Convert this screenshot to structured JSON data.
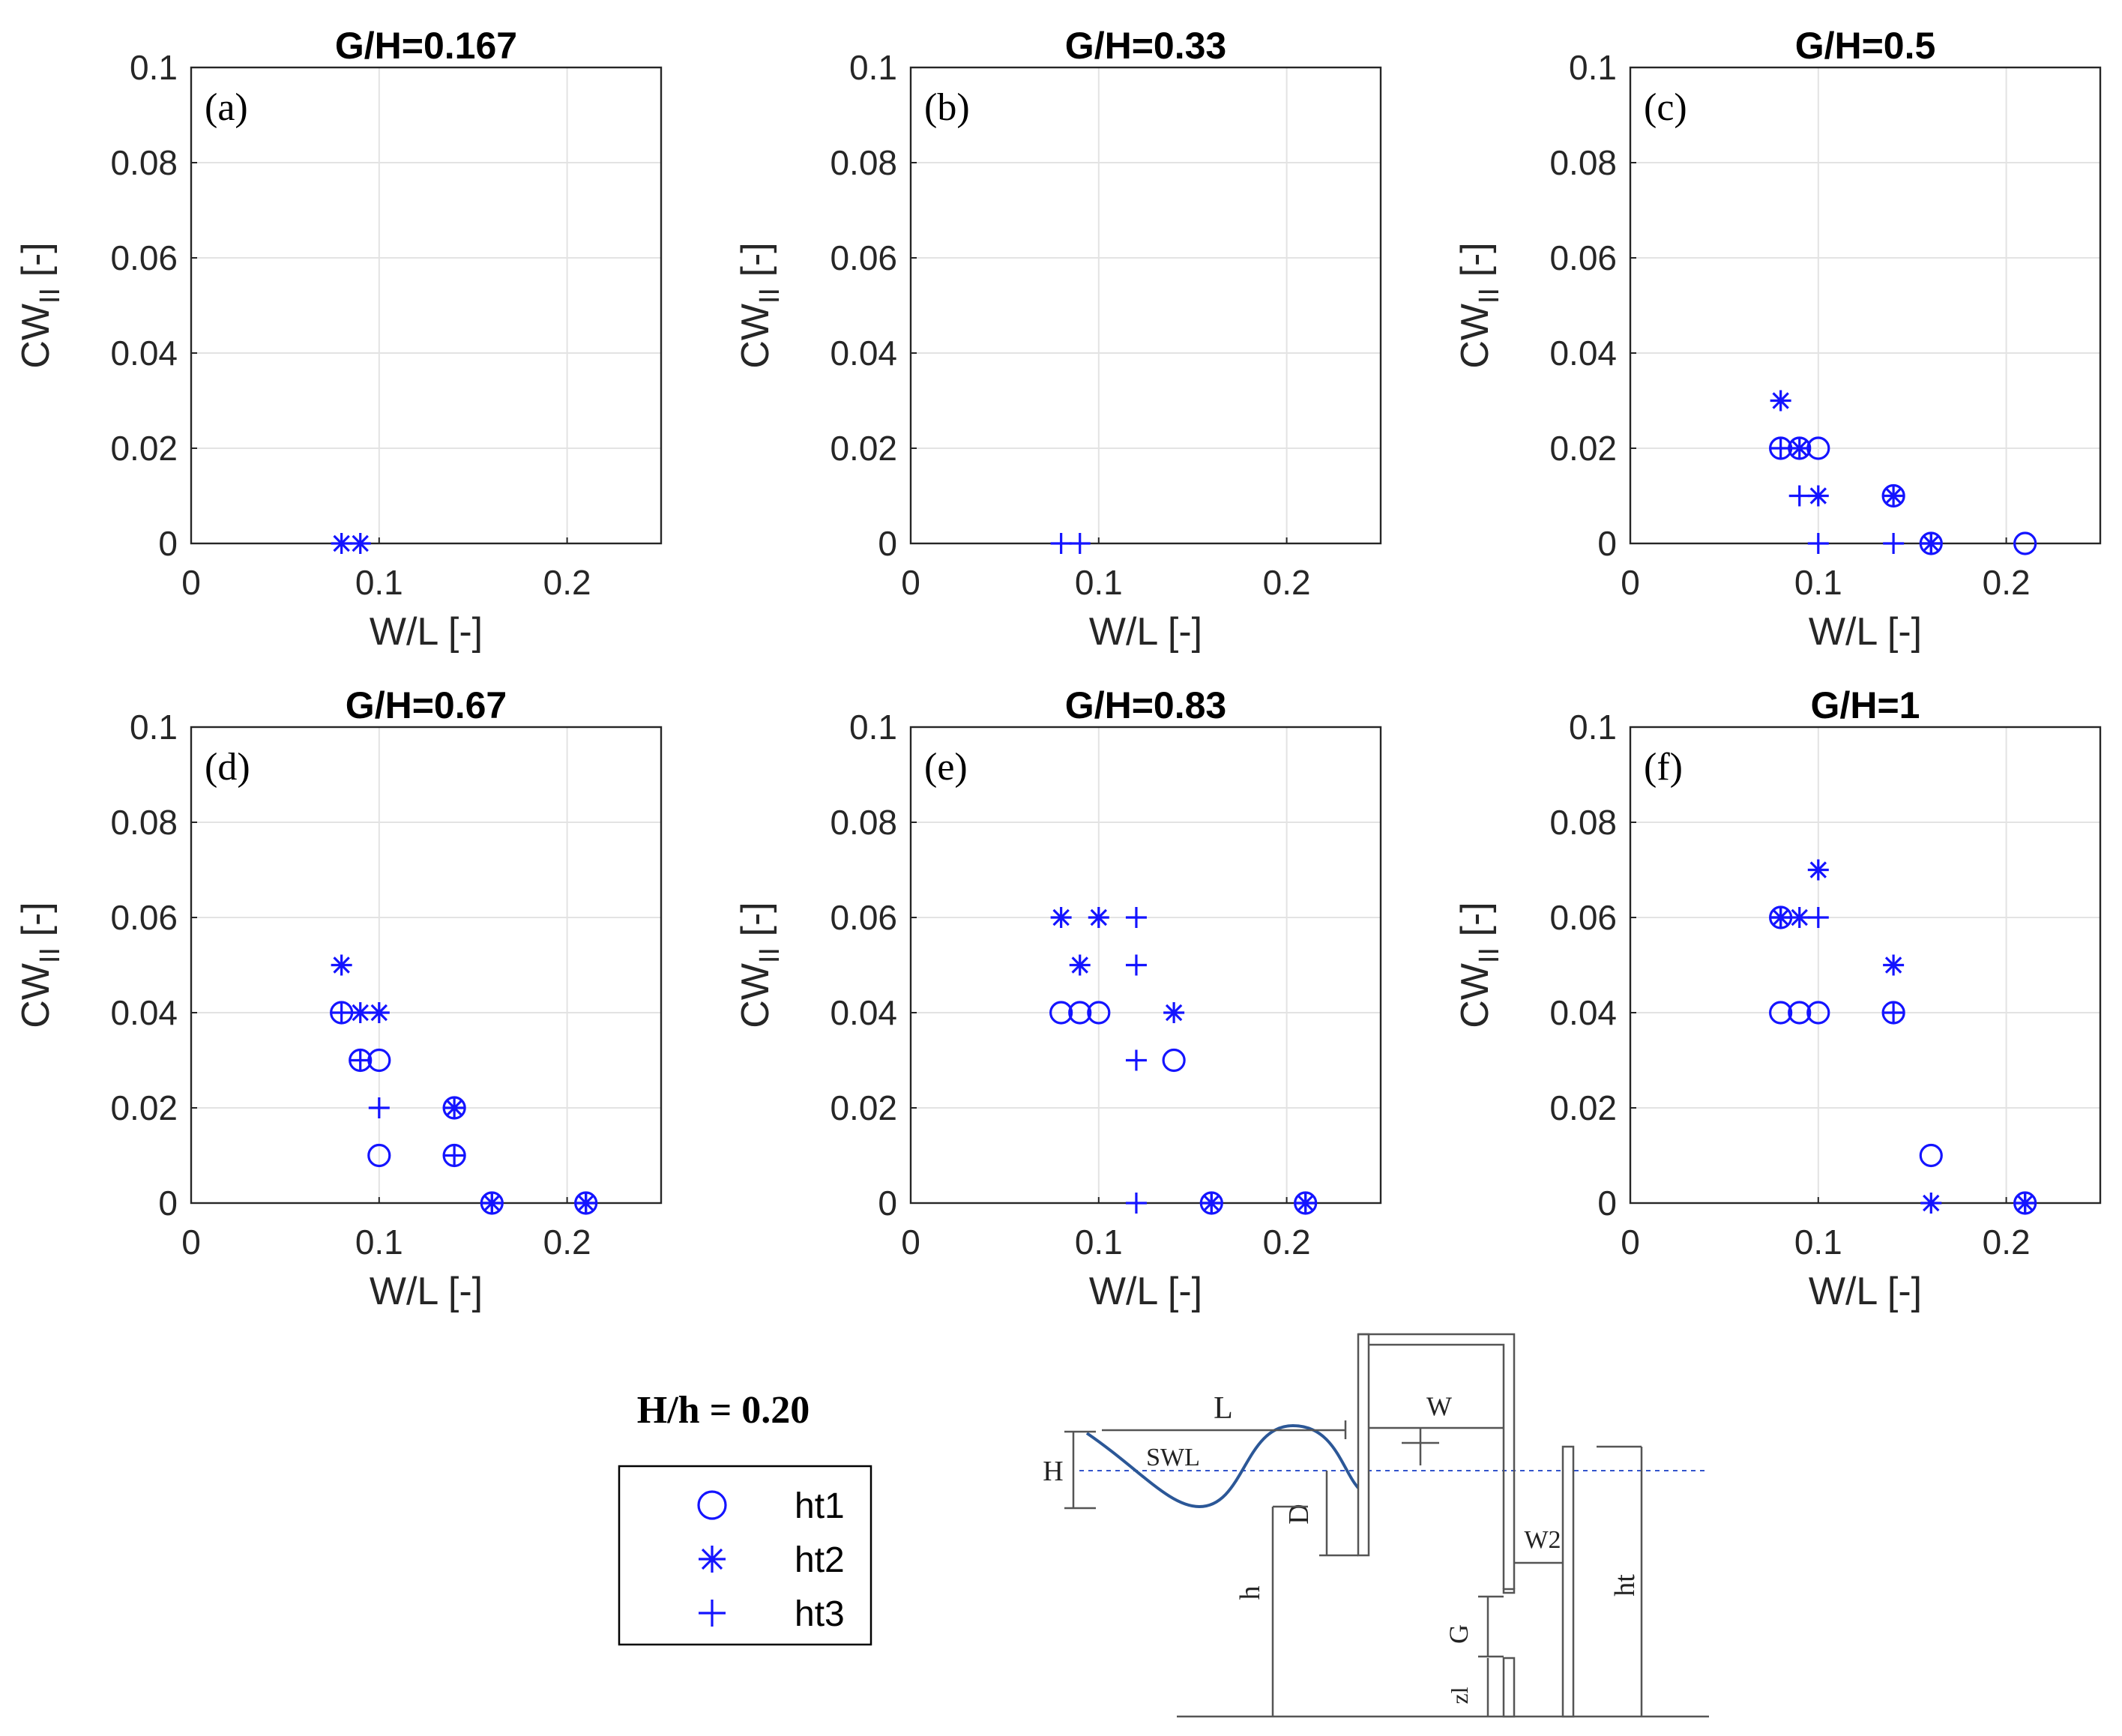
{
  "figure": {
    "legend_heading": "H/h = 0.20",
    "marker_color": "#1414ff"
  },
  "legend": {
    "items": [
      {
        "label": "ht1",
        "marker": "circle"
      },
      {
        "label": "ht2",
        "marker": "asterisk"
      },
      {
        "label": "ht3",
        "marker": "plus"
      }
    ]
  },
  "chart_data": [
    {
      "type": "scatter",
      "panel": "(a)",
      "title": "G/H=0.167",
      "xlabel": "W/L [-]",
      "ylabel": "CW",
      "ylabel_sub": "II",
      "ylabel_unit": " [-]",
      "xlim": [
        0,
        0.25
      ],
      "ylim": [
        0,
        0.1
      ],
      "xticks": [
        0,
        0.1,
        0.2
      ],
      "xtick_labels": [
        "0",
        "0.1",
        "0.2"
      ],
      "yticks": [
        0,
        0.02,
        0.04,
        0.06,
        0.08,
        0.1
      ],
      "ytick_labels": [
        "0",
        "0.02",
        "0.04",
        "0.06",
        "0.08",
        "0.1"
      ],
      "grid": true,
      "series": [
        {
          "name": "ht1",
          "marker": "circle",
          "points": []
        },
        {
          "name": "ht2",
          "marker": "asterisk",
          "points": [
            [
              0.08,
              0
            ],
            [
              0.09,
              0
            ]
          ]
        },
        {
          "name": "ht3",
          "marker": "plus",
          "points": []
        }
      ]
    },
    {
      "type": "scatter",
      "panel": "(b)",
      "title": "G/H=0.33",
      "xlabel": "W/L [-]",
      "ylabel": "CW",
      "ylabel_sub": "II",
      "ylabel_unit": " [-]",
      "xlim": [
        0,
        0.25
      ],
      "ylim": [
        0,
        0.1
      ],
      "xticks": [
        0,
        0.1,
        0.2
      ],
      "xtick_labels": [
        "0",
        "0.1",
        "0.2"
      ],
      "yticks": [
        0,
        0.02,
        0.04,
        0.06,
        0.08,
        0.1
      ],
      "ytick_labels": [
        "0",
        "0.02",
        "0.04",
        "0.06",
        "0.08",
        "0.1"
      ],
      "grid": true,
      "series": [
        {
          "name": "ht1",
          "marker": "circle",
          "points": []
        },
        {
          "name": "ht2",
          "marker": "asterisk",
          "points": []
        },
        {
          "name": "ht3",
          "marker": "plus",
          "points": [
            [
              0.08,
              0
            ],
            [
              0.09,
              0
            ]
          ]
        }
      ]
    },
    {
      "type": "scatter",
      "panel": "(c)",
      "title": "G/H=0.5",
      "xlabel": "W/L [-]",
      "ylabel": "CW",
      "ylabel_sub": "II",
      "ylabel_unit": " [-]",
      "xlim": [
        0,
        0.25
      ],
      "ylim": [
        0,
        0.1
      ],
      "xticks": [
        0,
        0.1,
        0.2
      ],
      "xtick_labels": [
        "0",
        "0.1",
        "0.2"
      ],
      "yticks": [
        0,
        0.02,
        0.04,
        0.06,
        0.08,
        0.1
      ],
      "ytick_labels": [
        "0",
        "0.02",
        "0.04",
        "0.06",
        "0.08",
        "0.1"
      ],
      "grid": true,
      "series": [
        {
          "name": "ht1",
          "marker": "circle",
          "points": [
            [
              0.08,
              0.02
            ],
            [
              0.09,
              0.02
            ],
            [
              0.1,
              0.02
            ],
            [
              0.14,
              0.01
            ],
            [
              0.16,
              0
            ],
            [
              0.21,
              0
            ]
          ]
        },
        {
          "name": "ht2",
          "marker": "asterisk",
          "points": [
            [
              0.08,
              0.03
            ],
            [
              0.09,
              0.02
            ],
            [
              0.1,
              0.01
            ],
            [
              0.14,
              0.01
            ],
            [
              0.16,
              0
            ]
          ]
        },
        {
          "name": "ht3",
          "marker": "plus",
          "points": [
            [
              0.08,
              0.02
            ],
            [
              0.09,
              0.01
            ],
            [
              0.1,
              0
            ],
            [
              0.14,
              0
            ],
            [
              0.16,
              0
            ]
          ]
        }
      ]
    },
    {
      "type": "scatter",
      "panel": "(d)",
      "title": "G/H=0.67",
      "xlabel": "W/L [-]",
      "ylabel": "CW",
      "ylabel_sub": "II",
      "ylabel_unit": " [-]",
      "xlim": [
        0,
        0.25
      ],
      "ylim": [
        0,
        0.1
      ],
      "xticks": [
        0,
        0.1,
        0.2
      ],
      "xtick_labels": [
        "0",
        "0.1",
        "0.2"
      ],
      "yticks": [
        0,
        0.02,
        0.04,
        0.06,
        0.08,
        0.1
      ],
      "ytick_labels": [
        "0",
        "0.02",
        "0.04",
        "0.06",
        "0.08",
        "0.1"
      ],
      "grid": true,
      "series": [
        {
          "name": "ht1",
          "marker": "circle",
          "points": [
            [
              0.08,
              0.04
            ],
            [
              0.09,
              0.03
            ],
            [
              0.1,
              0.03
            ],
            [
              0.1,
              0.01
            ],
            [
              0.14,
              0.02
            ],
            [
              0.14,
              0.01
            ],
            [
              0.16,
              0
            ],
            [
              0.21,
              0
            ]
          ]
        },
        {
          "name": "ht2",
          "marker": "asterisk",
          "points": [
            [
              0.08,
              0.05
            ],
            [
              0.09,
              0.04
            ],
            [
              0.1,
              0.04
            ],
            [
              0.14,
              0.02
            ],
            [
              0.16,
              0
            ],
            [
              0.21,
              0
            ]
          ]
        },
        {
          "name": "ht3",
          "marker": "plus",
          "points": [
            [
              0.08,
              0.04
            ],
            [
              0.09,
              0.03
            ],
            [
              0.1,
              0.02
            ],
            [
              0.14,
              0.01
            ],
            [
              0.16,
              0
            ],
            [
              0.21,
              0
            ]
          ]
        }
      ]
    },
    {
      "type": "scatter",
      "panel": "(e)",
      "title": "G/H=0.83",
      "xlabel": "W/L [-]",
      "ylabel": "CW",
      "ylabel_sub": "II",
      "ylabel_unit": " [-]",
      "xlim": [
        0,
        0.25
      ],
      "ylim": [
        0,
        0.1
      ],
      "xticks": [
        0,
        0.1,
        0.2
      ],
      "xtick_labels": [
        "0",
        "0.1",
        "0.2"
      ],
      "yticks": [
        0,
        0.02,
        0.04,
        0.06,
        0.08,
        0.1
      ],
      "ytick_labels": [
        "0",
        "0.02",
        "0.04",
        "0.06",
        "0.08",
        "0.1"
      ],
      "grid": true,
      "series": [
        {
          "name": "ht1",
          "marker": "circle",
          "points": [
            [
              0.08,
              0.04
            ],
            [
              0.09,
              0.04
            ],
            [
              0.1,
              0.04
            ],
            [
              0.14,
              0.03
            ],
            [
              0.16,
              0
            ],
            [
              0.21,
              0
            ]
          ]
        },
        {
          "name": "ht2",
          "marker": "asterisk",
          "points": [
            [
              0.08,
              0.06
            ],
            [
              0.09,
              0.05
            ],
            [
              0.1,
              0.06
            ],
            [
              0.14,
              0.04
            ],
            [
              0.16,
              0
            ],
            [
              0.21,
              0
            ]
          ]
        },
        {
          "name": "ht3",
          "marker": "plus",
          "points": [
            [
              0.12,
              0.06
            ],
            [
              0.12,
              0.05
            ],
            [
              0.12,
              0.03
            ],
            [
              0.12,
              0
            ],
            [
              0.16,
              0
            ],
            [
              0.21,
              0
            ]
          ]
        }
      ]
    },
    {
      "type": "scatter",
      "panel": "(f)",
      "title": "G/H=1",
      "xlabel": "W/L [-]",
      "ylabel": "CW",
      "ylabel_sub": "II",
      "ylabel_unit": " [-]",
      "xlim": [
        0,
        0.25
      ],
      "ylim": [
        0,
        0.1
      ],
      "xticks": [
        0,
        0.1,
        0.2
      ],
      "xtick_labels": [
        "0",
        "0.1",
        "0.2"
      ],
      "yticks": [
        0,
        0.02,
        0.04,
        0.06,
        0.08,
        0.1
      ],
      "ytick_labels": [
        "0",
        "0.02",
        "0.04",
        "0.06",
        "0.08",
        "0.1"
      ],
      "grid": true,
      "series": [
        {
          "name": "ht1",
          "marker": "circle",
          "points": [
            [
              0.08,
              0.06
            ],
            [
              0.08,
              0.04
            ],
            [
              0.09,
              0.04
            ],
            [
              0.1,
              0.04
            ],
            [
              0.14,
              0.04
            ],
            [
              0.16,
              0.01
            ],
            [
              0.21,
              0
            ]
          ]
        },
        {
          "name": "ht2",
          "marker": "asterisk",
          "points": [
            [
              0.08,
              0.06
            ],
            [
              0.09,
              0.06
            ],
            [
              0.1,
              0.07
            ],
            [
              0.14,
              0.05
            ],
            [
              0.16,
              0
            ],
            [
              0.21,
              0
            ]
          ]
        },
        {
          "name": "ht3",
          "marker": "plus",
          "points": [
            [
              0.08,
              0.06
            ],
            [
              0.1,
              0.06
            ],
            [
              0.14,
              0.04
            ],
            [
              0.21,
              0
            ]
          ]
        }
      ]
    }
  ],
  "schematic": {
    "labels": {
      "wavelength": "L",
      "wave_height": "H",
      "swl": "SWL",
      "chamber_width": "W",
      "draft": "D",
      "depth": "h",
      "rear_width": "W2",
      "gap": "G",
      "rear_height": "ht",
      "elevation": "zl"
    },
    "line_color": "#555555",
    "wave_color": "#2b5797",
    "swl_color": "#3355cc"
  }
}
